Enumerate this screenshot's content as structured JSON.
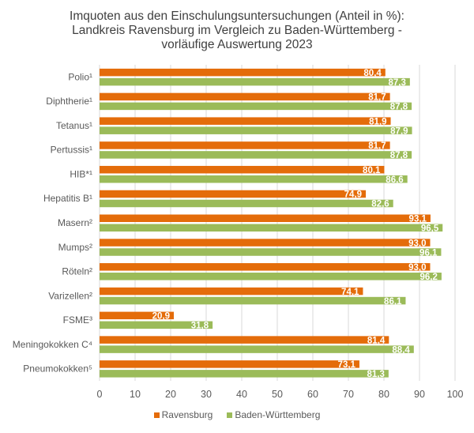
{
  "chart_data": {
    "type": "bar",
    "orientation": "horizontal",
    "title": [
      "Imquoten aus den Einschulungsuntersuchungen (Anteil in %):",
      "Landkreis Ravensburg im Vergleich zu Baden-Württemberg -",
      "vorläufige Auswertung 2023"
    ],
    "categories": [
      "Polio¹",
      "Diphtherie¹",
      "Tetanus¹",
      "Pertussis¹",
      "HIB*¹",
      "Hepatitis B¹",
      "Masern²",
      "Mumps²",
      "Röteln²",
      "Varizellen²",
      "FSME³",
      "Meningokokken C⁴",
      "Pneumokokken⁵"
    ],
    "series": [
      {
        "name": "Ravensburg",
        "color": "#E46C0A",
        "values": [
          80.4,
          81.7,
          81.9,
          81.7,
          80.1,
          74.9,
          93.1,
          93.0,
          93.0,
          74.1,
          20.9,
          81.4,
          73.1
        ],
        "labels": [
          "80,4",
          "81,7",
          "81,9",
          "81,7",
          "80,1",
          "74,9",
          "93,1",
          "93,0",
          "93,0",
          "74,1",
          "20,9",
          "81,4",
          "73,1"
        ]
      },
      {
        "name": "Baden-Württemberg",
        "color": "#9BBB59",
        "values": [
          87.3,
          87.8,
          87.9,
          87.8,
          86.6,
          82.6,
          96.5,
          96.1,
          96.2,
          86.1,
          31.8,
          88.4,
          81.3
        ],
        "labels": [
          "87,3",
          "87,8",
          "87,9",
          "87,8",
          "86,6",
          "82,6",
          "96,5",
          "96,1",
          "96,2",
          "86,1",
          "31,8",
          "88,4",
          "81,3"
        ]
      }
    ],
    "xlim": [
      0,
      100
    ],
    "xticks": [
      "0",
      "10",
      "20",
      "30",
      "40",
      "50",
      "60",
      "70",
      "80",
      "90",
      "100"
    ],
    "grid": true,
    "legend": "bottom"
  }
}
